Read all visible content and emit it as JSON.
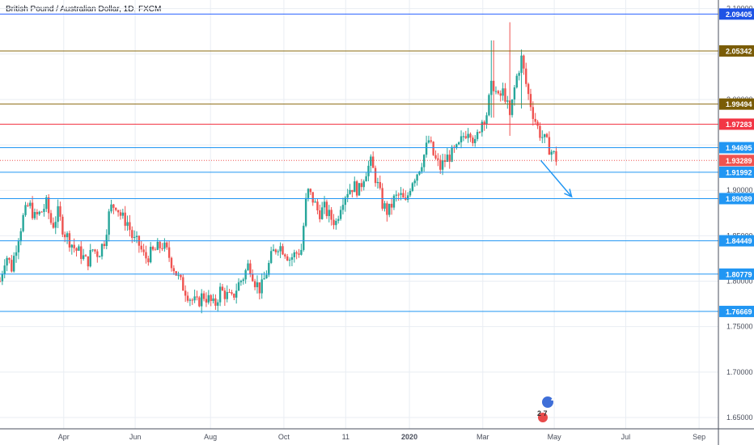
{
  "chart_data": {
    "type": "candlestick",
    "title": "British Pound / Australian Dollar, 1D, FXCM",
    "colors": {
      "up": "#26a69a",
      "down": "#ef5350",
      "grid": "#e9edf3",
      "axis": "#4a4f5c"
    },
    "x_ticks": [
      {
        "label": "Apr",
        "t": 0.21
      },
      {
        "label": "Jun",
        "t": 0.58
      },
      {
        "label": "Aug",
        "t": 0.97
      },
      {
        "label": "Oct",
        "t": 1.35
      },
      {
        "label": "11",
        "t": 1.67
      },
      {
        "label": "2020",
        "t": 2.0
      },
      {
        "label": "Mar",
        "t": 2.38
      },
      {
        "label": "May",
        "t": 2.75
      },
      {
        "label": "Jul",
        "t": 3.12
      },
      {
        "label": "Sep",
        "t": 3.5
      }
    ],
    "x_range": [
      -0.12,
      3.6
    ],
    "y_ticks": [
      "1.65000",
      "1.70000",
      "1.75000",
      "1.80000",
      "1.85000",
      "1.90000",
      "1.95000",
      "2.00000",
      "2.05000",
      "2.10000"
    ],
    "ylim": [
      1.6375,
      2.1095
    ],
    "hlines": [
      {
        "value": 2.09405,
        "label": "2.09405",
        "color": "#2962ff",
        "badge": "#1e53e5"
      },
      {
        "value": 2.05342,
        "label": "2.05342",
        "color": "#8b6b12",
        "badge": "#7a5c06"
      },
      {
        "value": 1.99494,
        "label": "1.99494",
        "color": "#8b6b12",
        "badge": "#7a5c06"
      },
      {
        "value": 1.97283,
        "label": "1.97283",
        "color": "#f23645",
        "badge": "#f23645"
      },
      {
        "value": 1.94695,
        "label": "1.94695",
        "color": "#2196f3",
        "badge": "#2196f3"
      },
      {
        "value": 1.91992,
        "label": "1.91992",
        "color": "#2196f3",
        "badge": "#2196f3"
      },
      {
        "value": 1.89089,
        "label": "1.89089",
        "color": "#2196f3",
        "badge": "#2196f3"
      },
      {
        "value": 1.84449,
        "label": "1.84449",
        "color": "#2196f3",
        "badge": "#2196f3"
      },
      {
        "value": 1.80779,
        "label": "1.80779",
        "color": "#2196f3",
        "badge": "#2196f3"
      },
      {
        "value": 1.76669,
        "label": "1.76669",
        "color": "#2196f3",
        "badge": "#2196f3"
      }
    ],
    "last_price": {
      "value": 1.93289,
      "label": "1.93289",
      "color": "#ef5350"
    },
    "arrow": {
      "from": [
        2.68,
        1.933
      ],
      "to": [
        2.84,
        1.893
      ],
      "color": "#2196f3"
    },
    "price_path": [
      [
        -0.12,
        1.8
      ],
      [
        -0.09,
        1.83
      ],
      [
        -0.06,
        1.815
      ],
      [
        -0.03,
        1.845
      ],
      [
        0.0,
        1.87
      ],
      [
        0.03,
        1.885
      ],
      [
        0.06,
        1.87
      ],
      [
        0.09,
        1.875
      ],
      [
        0.12,
        1.885
      ],
      [
        0.15,
        1.86
      ],
      [
        0.18,
        1.875
      ],
      [
        0.21,
        1.855
      ],
      [
        0.24,
        1.845
      ],
      [
        0.27,
        1.835
      ],
      [
        0.3,
        1.83
      ],
      [
        0.33,
        1.82
      ],
      [
        0.36,
        1.835
      ],
      [
        0.39,
        1.83
      ],
      [
        0.42,
        1.845
      ],
      [
        0.45,
        1.88
      ],
      [
        0.48,
        1.885
      ],
      [
        0.51,
        1.87
      ],
      [
        0.54,
        1.865
      ],
      [
        0.57,
        1.845
      ],
      [
        0.6,
        1.84
      ],
      [
        0.63,
        1.825
      ],
      [
        0.66,
        1.83
      ],
      [
        0.69,
        1.835
      ],
      [
        0.72,
        1.84
      ],
      [
        0.75,
        1.83
      ],
      [
        0.78,
        1.815
      ],
      [
        0.81,
        1.8
      ],
      [
        0.84,
        1.79
      ],
      [
        0.87,
        1.78
      ],
      [
        0.9,
        1.775
      ],
      [
        0.93,
        1.785
      ],
      [
        0.96,
        1.78
      ],
      [
        0.99,
        1.772
      ],
      [
        1.02,
        1.79
      ],
      [
        1.05,
        1.785
      ],
      [
        1.08,
        1.78
      ],
      [
        1.11,
        1.795
      ],
      [
        1.14,
        1.805
      ],
      [
        1.17,
        1.82
      ],
      [
        1.2,
        1.8
      ],
      [
        1.23,
        1.79
      ],
      [
        1.26,
        1.81
      ],
      [
        1.29,
        1.83
      ],
      [
        1.32,
        1.84
      ],
      [
        1.35,
        1.835
      ],
      [
        1.38,
        1.825
      ],
      [
        1.41,
        1.83
      ],
      [
        1.44,
        1.835
      ],
      [
        1.47,
        1.9
      ],
      [
        1.5,
        1.89
      ],
      [
        1.53,
        1.875
      ],
      [
        1.56,
        1.88
      ],
      [
        1.59,
        1.87
      ],
      [
        1.62,
        1.865
      ],
      [
        1.65,
        1.89
      ],
      [
        1.68,
        1.9
      ],
      [
        1.71,
        1.905
      ],
      [
        1.74,
        1.9
      ],
      [
        1.77,
        1.92
      ],
      [
        1.8,
        1.93
      ],
      [
        1.83,
        1.91
      ],
      [
        1.86,
        1.885
      ],
      [
        1.89,
        1.875
      ],
      [
        1.92,
        1.89
      ],
      [
        1.95,
        1.895
      ],
      [
        1.98,
        1.885
      ],
      [
        2.01,
        1.91
      ],
      [
        2.04,
        1.92
      ],
      [
        2.07,
        1.935
      ],
      [
        2.1,
        1.955
      ],
      [
        2.13,
        1.935
      ],
      [
        2.16,
        1.925
      ],
      [
        2.19,
        1.935
      ],
      [
        2.22,
        1.94
      ],
      [
        2.25,
        1.945
      ],
      [
        2.28,
        1.96
      ],
      [
        2.31,
        1.97
      ],
      [
        2.34,
        1.95
      ],
      [
        2.37,
        1.975
      ],
      [
        2.4,
        1.985
      ],
      [
        2.43,
        2.02
      ],
      [
        2.46,
        2.0
      ],
      [
        2.49,
        2.01
      ],
      [
        2.52,
        1.98
      ],
      [
        2.55,
        2.02
      ],
      [
        2.58,
        2.045
      ],
      [
        2.61,
        2.01
      ],
      [
        2.64,
        1.985
      ],
      [
        2.67,
        1.965
      ],
      [
        2.7,
        1.955
      ],
      [
        2.73,
        1.945
      ],
      [
        2.76,
        1.935
      ]
    ],
    "price_spikes": [
      {
        "t": 2.43,
        "high": 2.065,
        "low": 1.98
      },
      {
        "t": 2.52,
        "high": 2.085,
        "low": 1.96
      },
      {
        "t": 2.58,
        "high": 2.055,
        "low": 1.99
      }
    ]
  },
  "badges": {
    "icon_top": "2",
    "icon_bottom": "2  7"
  }
}
